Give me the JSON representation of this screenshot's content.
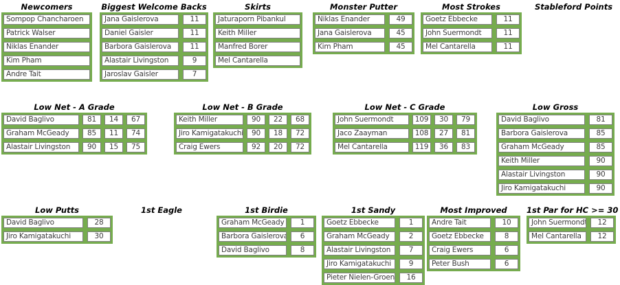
{
  "colors": {
    "green": "#76AC4E",
    "cell_border": "#7f7f7f",
    "cell_text": "#3b3b3b",
    "title_text": "#000000"
  },
  "sections": [
    {
      "id": "newcomers",
      "title": "Newcomers",
      "rows": [
        [
          "Sompop Chancharoen"
        ],
        [
          "Patrick Walser"
        ],
        [
          "Niklas Enander"
        ],
        [
          "Kim Pham"
        ],
        [
          "Andre Tait"
        ]
      ]
    },
    {
      "id": "welcome-backs",
      "title": "Biggest Welcome Backs",
      "rows": [
        [
          "Jana Gaislerova",
          "11"
        ],
        [
          "Daniel Gaisler",
          "11"
        ],
        [
          "Barbora Gaislerova",
          "11"
        ],
        [
          "Alastair Livingston",
          "9"
        ],
        [
          "Jaroslav Gaisler",
          "7"
        ]
      ]
    },
    {
      "id": "skirts",
      "title": "Skirts",
      "rows": [
        [
          "Jaturaporn Pibankul"
        ],
        [
          "Keith Miller"
        ],
        [
          "Manfred Borer"
        ],
        [
          "Mel Cantarella"
        ]
      ]
    },
    {
      "id": "monster-putter",
      "title": "Monster Putter",
      "rows": [
        [
          "Niklas Enander",
          "49"
        ],
        [
          "Jana Gaislerova",
          "45"
        ],
        [
          "Kim Pham",
          "45"
        ]
      ]
    },
    {
      "id": "most-strokes",
      "title": "Most Strokes",
      "rows": [
        [
          "Goetz Ebbecke",
          "11"
        ],
        [
          "John Suermondt",
          "11"
        ],
        [
          "Mel Cantarella",
          "11"
        ]
      ]
    },
    {
      "id": "stableford",
      "title": "Stableford Points",
      "rows": []
    },
    {
      "id": "low-net-a",
      "title": "Low Net - A Grade",
      "rows": [
        [
          "David Baglivo",
          "81",
          "14",
          "67"
        ],
        [
          "Graham McGeady",
          "85",
          "11",
          "74"
        ],
        [
          "Alastair Livingston",
          "90",
          "15",
          "75"
        ]
      ]
    },
    {
      "id": "low-net-b",
      "title": "Low Net - B Grade",
      "rows": [
        [
          "Keith Miller",
          "90",
          "22",
          "68"
        ],
        [
          "Jiro Kamigatakuchi",
          "90",
          "18",
          "72"
        ],
        [
          "Craig Ewers",
          "92",
          "20",
          "72"
        ]
      ]
    },
    {
      "id": "low-net-c",
      "title": "Low Net - C Grade",
      "rows": [
        [
          "John Suermondt",
          "109",
          "30",
          "79"
        ],
        [
          "Jaco Zaayman",
          "108",
          "27",
          "81"
        ],
        [
          "Mel Cantarella",
          "119",
          "36",
          "83"
        ]
      ]
    },
    {
      "id": "low-gross",
      "title": "Low Gross",
      "rows": [
        [
          "David Baglivo",
          "81"
        ],
        [
          "Barbora Gaislerova",
          "85"
        ],
        [
          "Graham McGeady",
          "85"
        ],
        [
          "Keith Miller",
          "90"
        ],
        [
          "Alastair Livingston",
          "90"
        ],
        [
          "Jiro Kamigatakuchi",
          "90"
        ]
      ]
    },
    {
      "id": "low-putts",
      "title": "Low Putts",
      "rows": [
        [
          "David Baglivo",
          "28"
        ],
        [
          "Jiro Kamigatakuchi",
          "30"
        ]
      ]
    },
    {
      "id": "first-eagle",
      "title": "1st Eagle",
      "rows": []
    },
    {
      "id": "first-birdie",
      "title": "1st Birdie",
      "rows": [
        [
          "Graham McGeady",
          "1"
        ],
        [
          "Barbora Gaislerova",
          "6"
        ],
        [
          "David Baglivo",
          "8"
        ]
      ]
    },
    {
      "id": "first-sandy",
      "title": "1st Sandy",
      "rows": [
        [
          "Goetz Ebbecke",
          "1"
        ],
        [
          "Graham McGeady",
          "2"
        ],
        [
          "Alastair Livingston",
          "7"
        ],
        [
          "Jiro Kamigatakuchi",
          "9"
        ],
        [
          "Pieter Nielen-Groen",
          "16"
        ]
      ]
    },
    {
      "id": "most-improved",
      "title": "Most Improved",
      "rows": [
        [
          "Andre Tait",
          "10"
        ],
        [
          "Goetz Ebbecke",
          "8"
        ],
        [
          "Craig Ewers",
          "6"
        ],
        [
          "Peter Bush",
          "6"
        ]
      ]
    },
    {
      "id": "first-par-hc30",
      "title": "1st Par for HC >= 30",
      "rows": [
        [
          "John Suermondt",
          "12"
        ],
        [
          "Mel Cantarella",
          "12"
        ]
      ]
    }
  ]
}
